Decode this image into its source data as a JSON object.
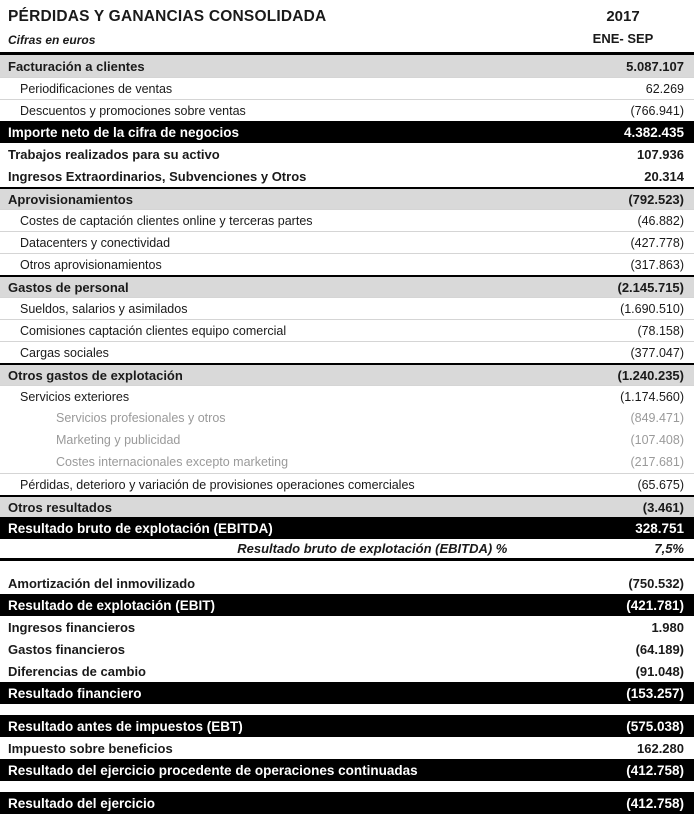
{
  "header": {
    "title": "PÉRDIDAS Y GANANCIAS CONSOLIDADA",
    "subtitle": "Cifras en euros",
    "year": "2017",
    "period": "ENE- SEP"
  },
  "rows": [
    {
      "style": "section",
      "label": "Facturación a clientes",
      "value": "5.087.107"
    },
    {
      "style": "item",
      "label": "Periodificaciones de ventas",
      "value": "62.269"
    },
    {
      "style": "item",
      "label": "Descuentos y promociones sobre ventas",
      "value": "(766.941)"
    },
    {
      "style": "total",
      "label": "Importe neto de la cifra de negocios",
      "value": "4.382.435"
    },
    {
      "style": "bold",
      "label": "Trabajos realizados para su activo",
      "value": "107.936"
    },
    {
      "style": "bold",
      "label": "Ingresos Extraordinarios, Subvenciones y Otros",
      "value": "20.314"
    },
    {
      "style": "section",
      "label": "Aprovisionamientos",
      "value": "(792.523)"
    },
    {
      "style": "item",
      "label": "Costes de captación clientes online y terceras partes",
      "value": "(46.882)"
    },
    {
      "style": "item",
      "label": "Datacenters y conectividad",
      "value": "(427.778)"
    },
    {
      "style": "item",
      "label": "Otros aprovisionamientos",
      "value": "(317.863)"
    },
    {
      "style": "section",
      "label": "Gastos de personal",
      "value": "(2.145.715)"
    },
    {
      "style": "item",
      "label": "Sueldos, salarios y asimilados",
      "value": "(1.690.510)"
    },
    {
      "style": "item",
      "label": "Comisiones captación clientes equipo comercial",
      "value": "(78.158)"
    },
    {
      "style": "item",
      "label": "Cargas sociales",
      "value": "(377.047)"
    },
    {
      "style": "section",
      "label": "Otros gastos de explotación",
      "value": "(1.240.235)"
    },
    {
      "style": "item",
      "label": "Servicios exteriores",
      "value": "(1.174.560)"
    },
    {
      "style": "subitem",
      "label": "Servicios profesionales y otros",
      "value": "(849.471)"
    },
    {
      "style": "subitem",
      "label": "Marketing y publicidad",
      "value": "(107.408)"
    },
    {
      "style": "subitem",
      "label": "Costes internacionales excepto marketing",
      "value": "(217.681)"
    },
    {
      "style": "item",
      "label": "Pérdidas, deterioro y variación de provisiones operaciones comerciales",
      "value": "(65.675)"
    },
    {
      "style": "section",
      "label": "Otros resultados",
      "value": "(3.461)"
    },
    {
      "style": "total",
      "label": "Resultado bruto de explotación (EBITDA)",
      "value": "328.751"
    },
    {
      "style": "percent",
      "label": "Resultado bruto de explotación (EBITDA) %",
      "value": "7,5%"
    },
    {
      "style": "spacer",
      "label": "",
      "value": ""
    },
    {
      "style": "bold",
      "label": "Amortización del inmovilizado",
      "value": "(750.532)"
    },
    {
      "style": "total",
      "label": "Resultado de explotación (EBIT)",
      "value": "(421.781)"
    },
    {
      "style": "bold",
      "label": "Ingresos financieros",
      "value": "1.980"
    },
    {
      "style": "bold",
      "label": "Gastos financieros",
      "value": "(64.189)"
    },
    {
      "style": "bold",
      "label": "Diferencias de cambio",
      "value": "(91.048)"
    },
    {
      "style": "total",
      "label": "Resultado financiero",
      "value": "(153.257)"
    },
    {
      "style": "spacer",
      "label": "",
      "value": ""
    },
    {
      "style": "total",
      "label": "Resultado antes de impuestos (EBT)",
      "value": "(575.038)"
    },
    {
      "style": "bold",
      "label": "Impuesto sobre beneficios",
      "value": "162.280"
    },
    {
      "style": "total",
      "label": "Resultado del ejercicio procedente de operaciones continuadas",
      "value": "(412.758)"
    },
    {
      "style": "spacer",
      "label": "",
      "value": ""
    },
    {
      "style": "total",
      "label": "Resultado del ejercicio",
      "value": "(412.758)"
    }
  ]
}
